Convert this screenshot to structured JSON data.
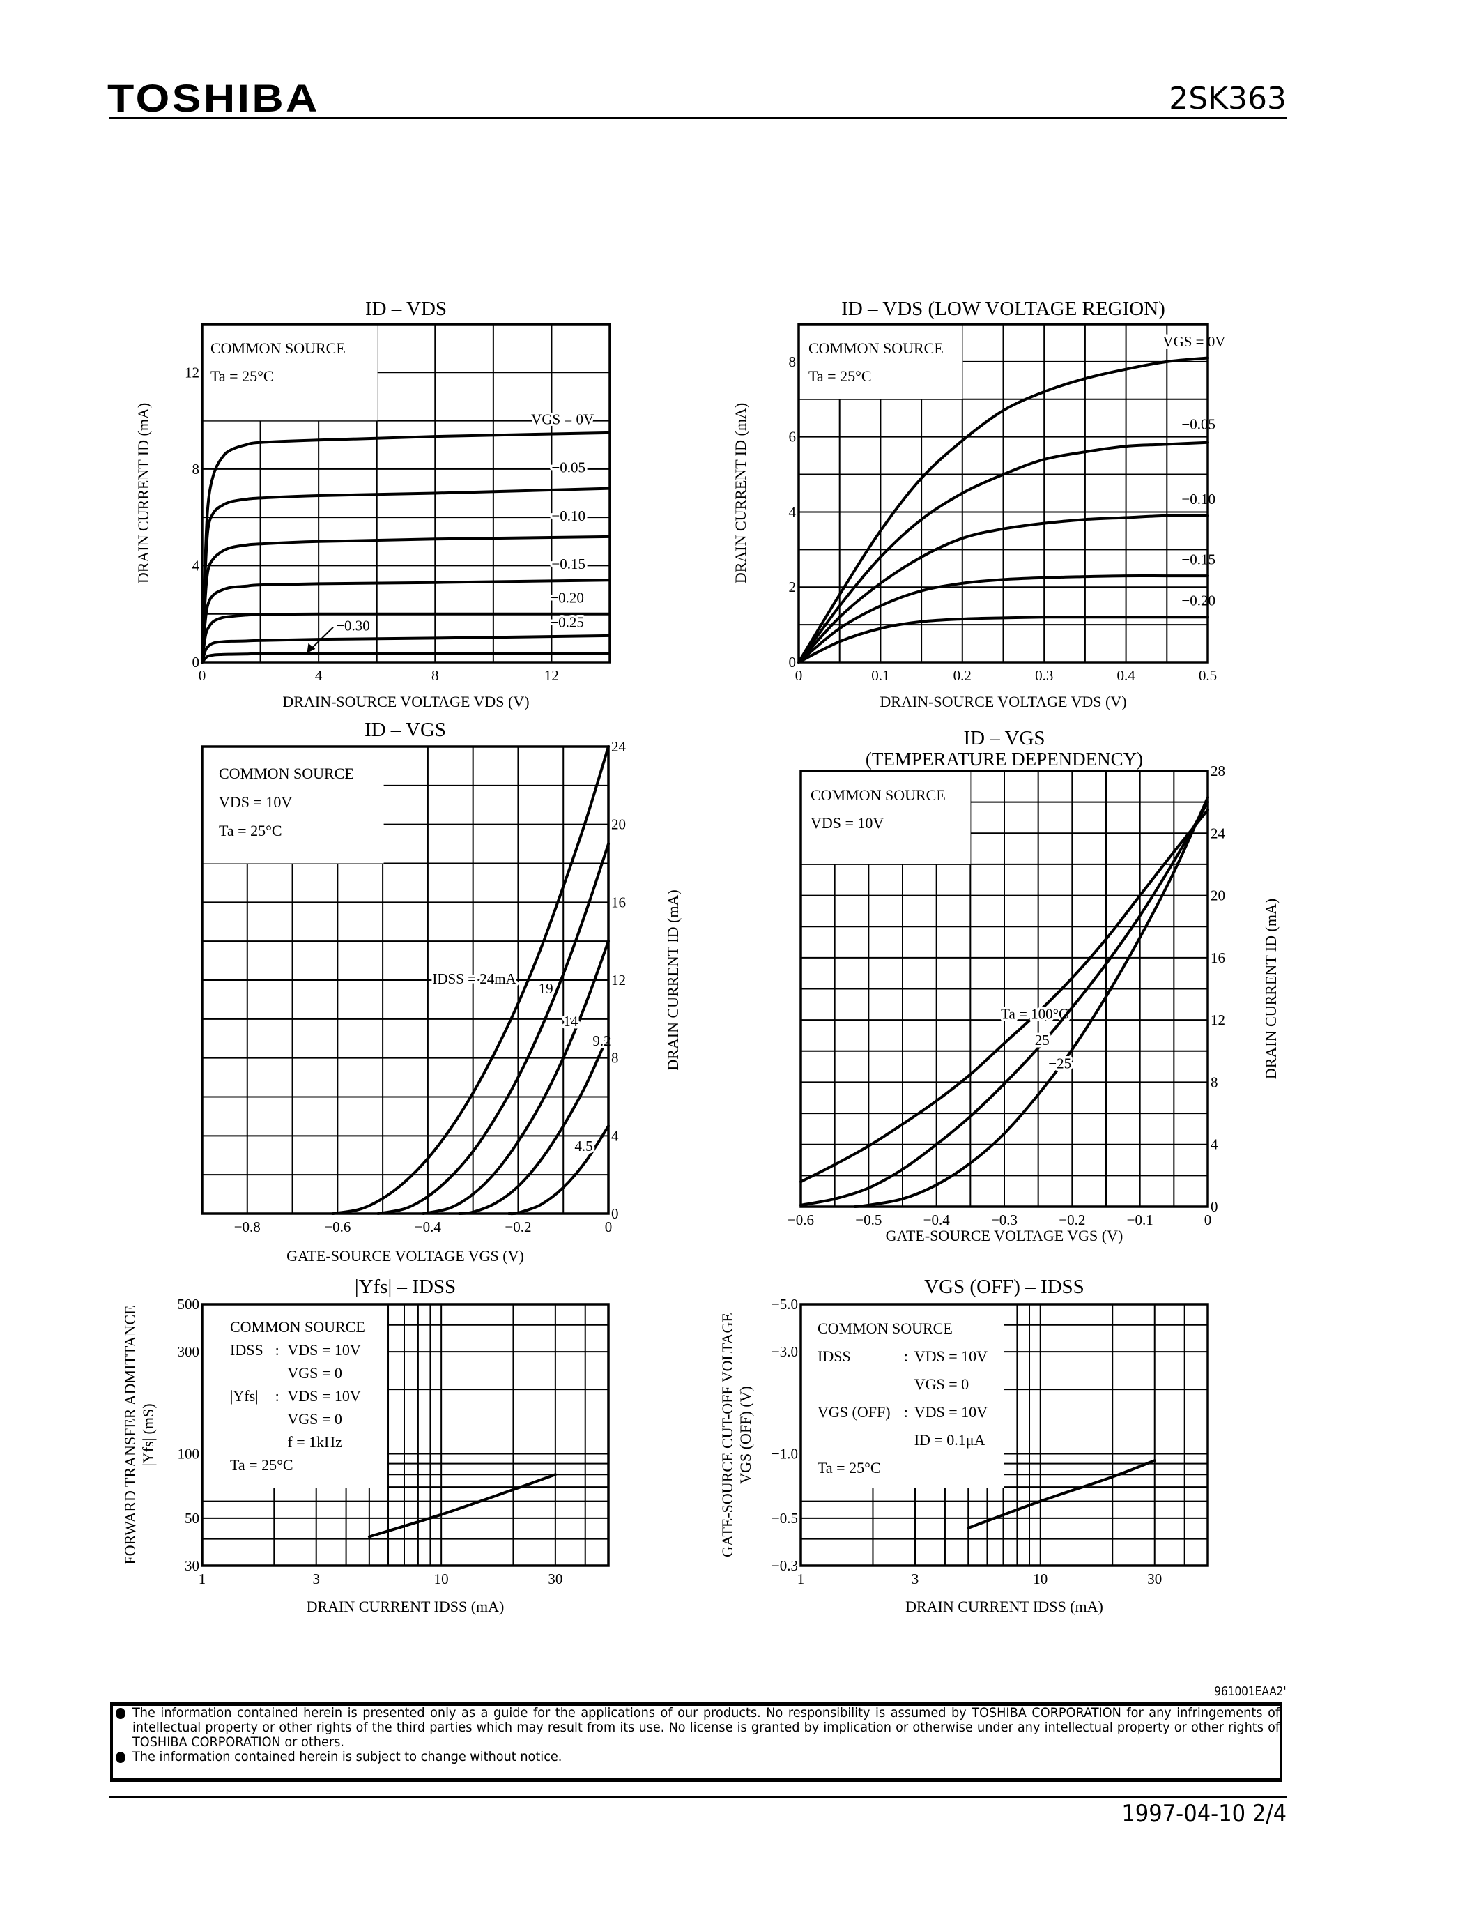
{
  "header": {
    "brand": "TOSHIBA",
    "part_number": "2SK363"
  },
  "footer": {
    "doc_code": "961001EAA2'",
    "disclaimer": [
      "The information contained herein is presented only as a guide for the applications of our products. No responsibility is assumed by TOSHIBA CORPORATION for any infringements of intellectual property or other rights of the third parties which may result from its use. No license is granted by implication or otherwise under any intellectual property or other rights of TOSHIBA CORPORATION or others.",
      "The information contained herein is subject to change without notice."
    ],
    "date_page": "1997-04-10   2/4"
  },
  "chart_data": [
    {
      "type": "line",
      "title": "ID – VDS",
      "xlabel": "DRAIN-SOURCE VOLTAGE   VDS (V)",
      "ylabel": "DRAIN CURRENT   ID   (mA)",
      "xlim": [
        0,
        14
      ],
      "ylim": [
        0,
        14
      ],
      "x_ticks": [
        0,
        4,
        8,
        12
      ],
      "x_tick_labels": [
        "0",
        "4",
        "8",
        "12"
      ],
      "y_ticks": [
        0,
        4,
        8,
        12
      ],
      "y_tick_labels": [
        "0",
        "4",
        "8",
        "12"
      ],
      "grid": true,
      "legend_box": [
        [
          "COMMON SOURCE"
        ],
        [
          "Ta = 25°C"
        ]
      ],
      "x": [
        0,
        0.1,
        0.2,
        0.4,
        0.7,
        1,
        1.5,
        2,
        4,
        8,
        14
      ],
      "series": [
        {
          "name": "VGS = 0V",
          "values": [
            0,
            4,
            6.5,
            7.8,
            8.5,
            8.8,
            9.0,
            9.1,
            9.2,
            9.35,
            9.5
          ]
        },
        {
          "name": "−0.05",
          "values": [
            0,
            3.5,
            5.5,
            6.2,
            6.5,
            6.65,
            6.75,
            6.8,
            6.9,
            7.0,
            7.2
          ]
        },
        {
          "name": "−0.10",
          "values": [
            0,
            2.5,
            3.8,
            4.3,
            4.6,
            4.75,
            4.85,
            4.9,
            5.0,
            5.1,
            5.2
          ]
        },
        {
          "name": "−0.15",
          "values": [
            0,
            1.6,
            2.4,
            2.8,
            3.0,
            3.1,
            3.15,
            3.2,
            3.25,
            3.3,
            3.4
          ]
        },
        {
          "name": "−0.20",
          "values": [
            0,
            1.0,
            1.4,
            1.7,
            1.85,
            1.9,
            1.95,
            1.97,
            2.0,
            2.0,
            2.0
          ]
        },
        {
          "name": "−0.25",
          "values": [
            0,
            0.45,
            0.65,
            0.8,
            0.85,
            0.87,
            0.88,
            0.9,
            0.95,
            1.0,
            1.1
          ]
        },
        {
          "name": "−0.30",
          "values": [
            0,
            0.15,
            0.25,
            0.3,
            0.32,
            0.33,
            0.34,
            0.35,
            0.35,
            0.35,
            0.35
          ]
        }
      ]
    },
    {
      "type": "line",
      "title": "ID – VDS   (LOW VOLTAGE REGION)",
      "xlabel": "DRAIN-SOURCE VOLTAGE   VDS   (V)",
      "ylabel": "DRAIN CURRENT   ID   (mA)",
      "xlim": [
        0,
        0.5
      ],
      "ylim": [
        0,
        9
      ],
      "x_ticks": [
        0,
        0.1,
        0.2,
        0.3,
        0.4,
        0.5
      ],
      "x_tick_labels": [
        "0",
        "0.1",
        "0.2",
        "0.3",
        "0.4",
        "0.5"
      ],
      "y_ticks": [
        0,
        2,
        4,
        6,
        8
      ],
      "y_tick_labels": [
        "0",
        "2",
        "4",
        "6",
        "8"
      ],
      "grid": true,
      "legend_box": [
        [
          "COMMON SOURCE"
        ],
        [
          "Ta = 25°C"
        ]
      ],
      "x": [
        0,
        0.05,
        0.1,
        0.15,
        0.2,
        0.25,
        0.3,
        0.35,
        0.4,
        0.45,
        0.5
      ],
      "series": [
        {
          "name": "VGS = 0V",
          "values": [
            0,
            1.8,
            3.5,
            4.9,
            5.9,
            6.7,
            7.2,
            7.55,
            7.8,
            8.0,
            8.1
          ]
        },
        {
          "name": "−0.05",
          "values": [
            0,
            1.5,
            2.8,
            3.8,
            4.5,
            5.0,
            5.4,
            5.6,
            5.75,
            5.8,
            5.85
          ]
        },
        {
          "name": "−0.10",
          "values": [
            0,
            1.2,
            2.1,
            2.8,
            3.3,
            3.55,
            3.7,
            3.8,
            3.85,
            3.9,
            3.9
          ]
        },
        {
          "name": "−0.15",
          "values": [
            0,
            0.9,
            1.5,
            1.9,
            2.1,
            2.2,
            2.25,
            2.28,
            2.3,
            2.3,
            2.3
          ]
        },
        {
          "name": "−0.20",
          "values": [
            0,
            0.55,
            0.9,
            1.08,
            1.15,
            1.18,
            1.2,
            1.2,
            1.2,
            1.2,
            1.2
          ]
        }
      ]
    },
    {
      "type": "line",
      "title": "ID – VGS",
      "xlabel": "GATE-SOURCE VOLTAGE   VGS   (V)",
      "ylabel": "DRAIN CURRENT   ID   (mA)",
      "xlim": [
        -0.9,
        0
      ],
      "ylim": [
        0,
        24
      ],
      "x_ticks": [
        -0.8,
        -0.6,
        -0.4,
        -0.2,
        0
      ],
      "x_tick_labels": [
        "−0.8",
        "−0.6",
        "−0.4",
        "−0.2",
        "0"
      ],
      "y_ticks": [
        0,
        4,
        8,
        12,
        16,
        20,
        24
      ],
      "y_tick_labels": [
        "0",
        "4",
        "8",
        "12",
        "16",
        "20",
        "24"
      ],
      "y_axis_side": "right",
      "grid": true,
      "legend_box": [
        [
          "COMMON SOURCE"
        ],
        [
          "VDS = 10V"
        ],
        [
          "Ta = 25°C"
        ]
      ],
      "series": [
        {
          "name": "IDSS = 24mA",
          "points": [
            [
              -0.61,
              0
            ],
            [
              -0.55,
              0.23
            ],
            [
              -0.5,
              0.78
            ],
            [
              -0.45,
              1.65
            ],
            [
              -0.4,
              2.84
            ],
            [
              -0.35,
              4.36
            ],
            [
              -0.3,
              6.2
            ],
            [
              -0.25,
              8.36
            ],
            [
              -0.2,
              10.8
            ],
            [
              -0.15,
              13.6
            ],
            [
              -0.1,
              16.8
            ],
            [
              -0.05,
              20.2
            ],
            [
              0,
              24
            ]
          ]
        },
        {
          "name": "19",
          "points": [
            [
              -0.51,
              0
            ],
            [
              -0.45,
              0.26
            ],
            [
              -0.4,
              0.88
            ],
            [
              -0.35,
              1.87
            ],
            [
              -0.3,
              3.2
            ],
            [
              -0.25,
              4.94
            ],
            [
              -0.2,
              7.0
            ],
            [
              -0.15,
              9.47
            ],
            [
              -0.1,
              12.3
            ],
            [
              -0.05,
              15.5
            ],
            [
              0,
              19
            ]
          ]
        },
        {
          "name": "14",
          "points": [
            [
              -0.41,
              0
            ],
            [
              -0.35,
              0.3
            ],
            [
              -0.3,
              1.0
            ],
            [
              -0.25,
              2.13
            ],
            [
              -0.2,
              3.7
            ],
            [
              -0.15,
              5.63
            ],
            [
              -0.1,
              8.0
            ],
            [
              -0.05,
              10.8
            ],
            [
              0,
              14
            ]
          ]
        },
        {
          "name": "9.2",
          "points": [
            [
              -0.33,
              0
            ],
            [
              -0.3,
              0.08
            ],
            [
              -0.25,
              0.54
            ],
            [
              -0.2,
              1.4
            ],
            [
              -0.15,
              2.74
            ],
            [
              -0.1,
              4.5
            ],
            [
              -0.05,
              6.6
            ],
            [
              0,
              9.2
            ]
          ]
        },
        {
          "name": "4.5",
          "points": [
            [
              -0.22,
              0
            ],
            [
              -0.2,
              0.04
            ],
            [
              -0.15,
              0.46
            ],
            [
              -0.1,
              1.34
            ],
            [
              -0.05,
              2.69
            ],
            [
              0,
              4.5
            ]
          ]
        }
      ]
    },
    {
      "type": "line",
      "title": "ID – VGS",
      "subtitle": "(TEMPERATURE DEPENDENCY)",
      "xlabel": "GATE-SOURCE VOLTAGE   VGS   (V)",
      "ylabel": "DRAIN CURRENT   ID   (mA)",
      "xlim": [
        -0.6,
        0
      ],
      "ylim": [
        0,
        28
      ],
      "x_ticks": [
        -0.6,
        -0.5,
        -0.4,
        -0.3,
        -0.2,
        -0.1,
        0
      ],
      "x_tick_labels": [
        "−0.6",
        "−0.5",
        "−0.4",
        "−0.3",
        "−0.2",
        "−0.1",
        "0"
      ],
      "y_ticks": [
        0,
        4,
        8,
        12,
        16,
        20,
        24,
        28
      ],
      "y_tick_labels": [
        "0",
        "4",
        "8",
        "12",
        "16",
        "20",
        "24",
        "28"
      ],
      "y_axis_side": "right",
      "grid": true,
      "legend_box": [
        [
          "COMMON SOURCE"
        ],
        [
          "VDS = 10V"
        ]
      ],
      "series": [
        {
          "name": "Ta = 100°C",
          "points": [
            [
              -0.6,
              1.6
            ],
            [
              -0.55,
              2.7
            ],
            [
              -0.5,
              3.9
            ],
            [
              -0.45,
              5.3
            ],
            [
              -0.4,
              6.8
            ],
            [
              -0.35,
              8.5
            ],
            [
              -0.3,
              10.5
            ],
            [
              -0.25,
              12.5
            ],
            [
              -0.2,
              14.7
            ],
            [
              -0.15,
              17.2
            ],
            [
              -0.1,
              20
            ],
            [
              -0.05,
              22.8
            ],
            [
              0,
              25.5
            ]
          ]
        },
        {
          "name": "25",
          "points": [
            [
              -0.6,
              0.1
            ],
            [
              -0.55,
              0.5
            ],
            [
              -0.5,
              1.2
            ],
            [
              -0.45,
              2.4
            ],
            [
              -0.4,
              4
            ],
            [
              -0.35,
              5.8
            ],
            [
              -0.3,
              7.9
            ],
            [
              -0.25,
              10.2
            ],
            [
              -0.2,
              12.8
            ],
            [
              -0.15,
              15.6
            ],
            [
              -0.1,
              18.7
            ],
            [
              -0.05,
              22.2
            ],
            [
              0,
              26
            ]
          ]
        },
        {
          "name": "−25",
          "points": [
            [
              -0.52,
              0
            ],
            [
              -0.5,
              0.1
            ],
            [
              -0.45,
              0.5
            ],
            [
              -0.4,
              1.4
            ],
            [
              -0.35,
              2.8
            ],
            [
              -0.3,
              4.7
            ],
            [
              -0.25,
              7.2
            ],
            [
              -0.2,
              10.1
            ],
            [
              -0.15,
              13.5
            ],
            [
              -0.1,
              17.3
            ],
            [
              -0.05,
              21.5
            ],
            [
              0,
              26.3
            ]
          ]
        }
      ]
    },
    {
      "type": "line",
      "title": "|Yfs| – IDSS",
      "xlabel": "DRAIN CURRENT   IDSS   (mA)",
      "ylabel": [
        "FORWARD TRANSFER ADMITTANCE",
        "|Yfs|   (mS)"
      ],
      "xscale": "log",
      "yscale": "log",
      "xlim": [
        1,
        50
      ],
      "ylim": [
        30,
        500
      ],
      "x_ticks": [
        1,
        3,
        10,
        30
      ],
      "x_tick_labels": [
        "1",
        "3",
        "10",
        "30"
      ],
      "y_ticks": [
        30,
        50,
        100,
        300,
        500
      ],
      "y_tick_labels": [
        "30",
        "50",
        "100",
        "300",
        "500"
      ],
      "grid": true,
      "legend_box": [
        [
          "COMMON SOURCE"
        ],
        [
          "IDSS",
          ":",
          "VDS = 10V"
        ],
        [
          "",
          "",
          "VGS = 0"
        ],
        [
          "|Yfs|",
          ":",
          "VDS = 10V"
        ],
        [
          "",
          "",
          "VGS = 0"
        ],
        [
          "",
          "",
          "f = 1kHz"
        ],
        [
          "Ta = 25°C"
        ]
      ],
      "series": [
        {
          "points": [
            [
              5,
              41
            ],
            [
              10,
              52
            ],
            [
              20,
              68
            ],
            [
              30,
              80
            ]
          ]
        }
      ]
    },
    {
      "type": "line",
      "title": "VGS (OFF) – IDSS",
      "xlabel": "DRAIN CURRENT   IDSS   (mA)",
      "ylabel": [
        "GATE-SOURCE CUT-OFF VOLTAGE",
        "VGS (OFF)   (V)"
      ],
      "xscale": "log",
      "yscale": "log",
      "xlim": [
        1,
        50
      ],
      "ylim": [
        -0.3,
        -5.0
      ],
      "x_ticks": [
        1,
        3,
        10,
        30
      ],
      "x_tick_labels": [
        "1",
        "3",
        "10",
        "30"
      ],
      "y_ticks": [
        -0.3,
        -0.5,
        -1.0,
        -3.0,
        -5.0
      ],
      "y_tick_labels": [
        "−0.3",
        "−0.5",
        "−1.0",
        "−3.0",
        "−5.0"
      ],
      "grid": true,
      "legend_box": [
        [
          "COMMON SOURCE"
        ],
        [
          "IDSS",
          ":",
          "VDS = 10V"
        ],
        [
          "",
          "",
          "VGS = 0"
        ],
        [
          "VGS (OFF)",
          ":",
          "VDS = 10V"
        ],
        [
          "",
          "",
          "ID = 0.1μA"
        ],
        [
          "Ta = 25°C"
        ]
      ],
      "series": [
        {
          "points": [
            [
              5,
              -0.45
            ],
            [
              10,
              -0.6
            ],
            [
              20,
              -0.78
            ],
            [
              30,
              -0.93
            ]
          ]
        }
      ]
    }
  ]
}
